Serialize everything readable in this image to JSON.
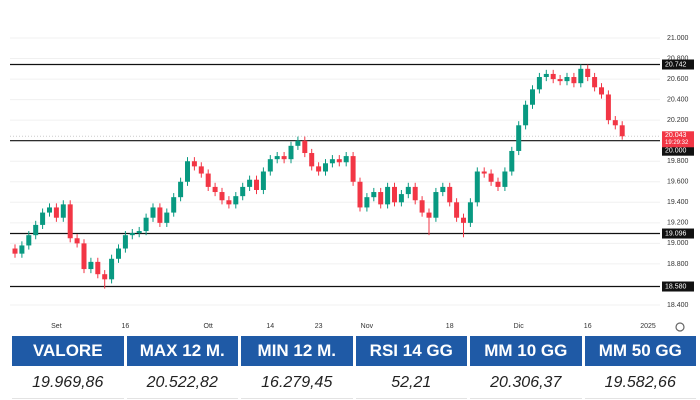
{
  "chart_data": {
    "type": "candlestick",
    "categories": [
      null,
      null,
      null,
      null,
      null,
      null,
      "Set",
      null,
      null,
      null,
      null,
      null,
      null,
      null,
      null,
      null,
      "16",
      null,
      null,
      null,
      null,
      null,
      null,
      null,
      null,
      null,
      null,
      null,
      "Ott",
      null,
      null,
      null,
      null,
      null,
      null,
      null,
      null,
      "14",
      null,
      null,
      null,
      null,
      null,
      null,
      "23",
      null,
      null,
      null,
      null,
      null,
      null,
      "Nov",
      null,
      null,
      null,
      null,
      null,
      null,
      null,
      null,
      null,
      null,
      null,
      "18",
      null,
      null,
      null,
      null,
      null,
      null,
      null,
      null,
      null,
      "Dic",
      null,
      null,
      null,
      null,
      null,
      null,
      null,
      null,
      null,
      "16",
      null,
      null,
      null,
      null,
      null
    ],
    "x_end_label": "2025",
    "open": [
      18950,
      18900,
      18980,
      19080,
      19180,
      19300,
      19350,
      19250,
      19380,
      19050,
      19000,
      18750,
      18820,
      18700,
      18650,
      18850,
      18950,
      19080,
      19100,
      19120,
      19250,
      19350,
      19200,
      19300,
      19450,
      19600,
      19800,
      19750,
      19680,
      19550,
      19500,
      19420,
      19380,
      19460,
      19550,
      19620,
      19520,
      19700,
      19820,
      19850,
      19820,
      19950,
      20000,
      19880,
      19750,
      19700,
      19780,
      19820,
      19790,
      19850,
      19600,
      19350,
      19450,
      19500,
      19380,
      19550,
      19400,
      19480,
      19550,
      19420,
      19300,
      19250,
      19500,
      19550,
      19400,
      19250,
      19200,
      19400,
      19700,
      19680,
      19600,
      19550,
      19700,
      19900,
      20150,
      20350,
      20500,
      20620,
      20650,
      20600,
      20580,
      20620,
      20560,
      20700,
      20620,
      20520,
      20450,
      20200,
      20150
    ],
    "high": [
      18990,
      19020,
      19120,
      19220,
      19340,
      19390,
      19390,
      19420,
      19420,
      19090,
      19040,
      18860,
      18860,
      18740,
      18890,
      18990,
      19120,
      19140,
      19160,
      19290,
      19390,
      19390,
      19340,
      19490,
      19640,
      19840,
      19840,
      19790,
      19720,
      19590,
      19540,
      19460,
      19500,
      19590,
      19660,
      19660,
      19740,
      19860,
      19890,
      19890,
      19990,
      20040,
      20040,
      19920,
      19790,
      19820,
      19860,
      19860,
      19890,
      19890,
      19640,
      19490,
      19540,
      19540,
      19590,
      19590,
      19520,
      19590,
      19590,
      19460,
      19340,
      19540,
      19590,
      19590,
      19440,
      19290,
      19440,
      19740,
      19740,
      19720,
      19640,
      19740,
      19940,
      20190,
      20390,
      20540,
      20660,
      20690,
      20690,
      20640,
      20660,
      20660,
      20742,
      20740,
      20660,
      20560,
      20490,
      20240,
      20190
    ],
    "low": [
      18860,
      18860,
      18940,
      19040,
      19140,
      19260,
      19210,
      19210,
      19010,
      18960,
      18710,
      18710,
      18660,
      18560,
      18610,
      18810,
      18910,
      19040,
      19060,
      19080,
      19210,
      19160,
      19160,
      19260,
      19410,
      19560,
      19710,
      19640,
      19510,
      19460,
      19380,
      19340,
      19340,
      19420,
      19510,
      19480,
      19480,
      19660,
      19780,
      19780,
      19780,
      19910,
      19840,
      19710,
      19660,
      19660,
      19740,
      19750,
      19750,
      19560,
      19310,
      19310,
      19410,
      19340,
      19340,
      19360,
      19360,
      19440,
      19380,
      19260,
      19080,
      19210,
      19460,
      19360,
      19210,
      19060,
      19160,
      19360,
      19640,
      19560,
      19510,
      19510,
      19660,
      19860,
      20110,
      20310,
      20460,
      20580,
      20560,
      20540,
      20540,
      20520,
      20520,
      20580,
      20480,
      20410,
      20160,
      20110,
      20010
    ],
    "close": [
      18900,
      18980,
      19080,
      19180,
      19300,
      19350,
      19250,
      19380,
      19050,
      19000,
      18750,
      18820,
      18700,
      18650,
      18850,
      18950,
      19080,
      19100,
      19120,
      19250,
      19350,
      19200,
      19300,
      19450,
      19600,
      19800,
      19750,
      19680,
      19550,
      19500,
      19420,
      19380,
      19460,
      19550,
      19620,
      19520,
      19700,
      19820,
      19850,
      19820,
      19950,
      20000,
      19880,
      19750,
      19700,
      19780,
      19820,
      19790,
      19850,
      19600,
      19350,
      19450,
      19500,
      19380,
      19550,
      19400,
      19480,
      19550,
      19420,
      19300,
      19250,
      19500,
      19550,
      19400,
      19250,
      19200,
      19400,
      19700,
      19680,
      19600,
      19550,
      19700,
      19900,
      20150,
      20350,
      20500,
      20620,
      20650,
      20600,
      20580,
      20620,
      20560,
      20700,
      20620,
      20520,
      20450,
      20200,
      20150,
      20043
    ],
    "up_color": "#089981",
    "down_color": "#f23645",
    "ylim": [
      18400,
      21000
    ],
    "yticks": [
      {
        "value": 21000,
        "label": "21.000"
      },
      {
        "value": 20800,
        "label": "20.800"
      },
      {
        "value": 20600,
        "label": "20.600"
      },
      {
        "value": 20400,
        "label": "20.400"
      },
      {
        "value": 20200,
        "label": "20.200"
      },
      {
        "value": 19800,
        "label": "19.800"
      },
      {
        "value": 19600,
        "label": "19.600"
      },
      {
        "value": 19400,
        "label": "19.400"
      },
      {
        "value": 19200,
        "label": "19.200"
      },
      {
        "value": 19000,
        "label": "19.000"
      },
      {
        "value": 18800,
        "label": "18.800"
      },
      {
        "value": 18400,
        "label": "18.400"
      }
    ],
    "levels": [
      {
        "value": 20742,
        "label": "20.742"
      },
      {
        "value": 20000,
        "label": "20.000"
      },
      {
        "value": 19096,
        "label": "19.096"
      },
      {
        "value": 18580,
        "label": "18.580"
      }
    ],
    "last_price": {
      "value": 20043,
      "label": "20.043"
    },
    "countdown": "19:29:32",
    "grid": true
  },
  "table": {
    "headers": [
      "VALORE",
      "MAX 12 M.",
      "MIN 12 M.",
      "RSI 14 GG",
      "MM 10 GG",
      "MM 50 GG"
    ],
    "values": [
      "19.969,86",
      "20.522,82",
      "16.279,45",
      "52,21",
      "20.306,37",
      "19.582,66"
    ]
  }
}
